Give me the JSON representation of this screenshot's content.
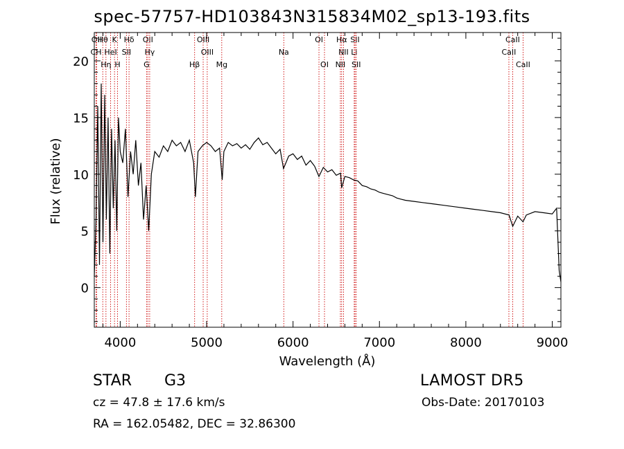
{
  "title": "spec-57757-HD103843N315834M02_sp13-193.fits",
  "info": {
    "object_type": "STAR",
    "subclass": "G3",
    "survey": "LAMOST DR5",
    "cz": "cz = 47.8 ± 17.6 km/s",
    "obs_date": "Obs-Date: 20170103",
    "radec": "RA = 162.05482, DEC =  32.86300"
  },
  "chart_data": {
    "type": "line",
    "title": "spec-57757-HD103843N315834M02_sp13-193.fits",
    "xlabel": "Wavelength (Å)",
    "ylabel": "Flux (relative)",
    "xlim": [
      3700,
      9100
    ],
    "ylim": [
      -3.5,
      22.5
    ],
    "xticks": [
      4000,
      5000,
      6000,
      7000,
      8000,
      9000
    ],
    "yticks": [
      0,
      5,
      10,
      15,
      20
    ],
    "grid": false,
    "line_color": "#000000",
    "marker_color": "#cc0000",
    "series": [
      {
        "x": [
          3700,
          3720,
          3740,
          3760,
          3780,
          3800,
          3820,
          3840,
          3860,
          3880,
          3900,
          3920,
          3940,
          3960,
          3980,
          4000,
          4030,
          4060,
          4090,
          4120,
          4150,
          4180,
          4210,
          4240,
          4270,
          4300,
          4330,
          4360,
          4400,
          4450,
          4500,
          4550,
          4600,
          4650,
          4700,
          4750,
          4800,
          4850,
          4870,
          4900,
          4950,
          5000,
          5050,
          5100,
          5150,
          5180,
          5200,
          5250,
          5300,
          5350,
          5400,
          5450,
          5500,
          5550,
          5600,
          5650,
          5700,
          5750,
          5800,
          5850,
          5890,
          5950,
          6000,
          6050,
          6100,
          6150,
          6200,
          6250,
          6300,
          6350,
          6400,
          6450,
          6500,
          6550,
          6563,
          6600,
          6650,
          6700,
          6750,
          6800,
          6850,
          6900,
          6950,
          7000,
          7050,
          7100,
          7150,
          7200,
          7250,
          7300,
          7400,
          7500,
          7600,
          7700,
          7800,
          7900,
          8000,
          8100,
          8200,
          8300,
          8400,
          8500,
          8542,
          8600,
          8662,
          8700,
          8800,
          8900,
          9000,
          9050,
          9080,
          9100
        ],
        "y": [
          1,
          6,
          16,
          2,
          18,
          4,
          17,
          6,
          15,
          3,
          14,
          7,
          13,
          5,
          15,
          12,
          11,
          14,
          8,
          12,
          10,
          13,
          9,
          11,
          6,
          9,
          5,
          10,
          12,
          11.5,
          12.5,
          12,
          13,
          12.5,
          12.8,
          12,
          13,
          11,
          8,
          12,
          12.5,
          12.8,
          12.5,
          12,
          12.3,
          9.5,
          12,
          12.8,
          12.5,
          12.7,
          12.3,
          12.6,
          12.2,
          12.8,
          13.2,
          12.6,
          12.8,
          12.3,
          11.8,
          12.2,
          10.5,
          11.6,
          11.8,
          11.3,
          11.6,
          10.8,
          11.2,
          10.7,
          9.8,
          10.6,
          10.2,
          10.4,
          9.9,
          10.1,
          8.8,
          9.8,
          9.7,
          9.5,
          9.4,
          9.0,
          8.9,
          8.7,
          8.6,
          8.4,
          8.3,
          8.2,
          8.1,
          7.9,
          7.8,
          7.7,
          7.6,
          7.5,
          7.4,
          7.3,
          7.2,
          7.1,
          7.0,
          6.9,
          6.8,
          6.7,
          6.6,
          6.4,
          5.4,
          6.3,
          5.8,
          6.4,
          6.7,
          6.6,
          6.5,
          7.0,
          1.5,
          0.5
        ]
      }
    ],
    "markers": [
      {
        "name": "Hθ",
        "x": 3798
      },
      {
        "name": "K",
        "x": 3934
      },
      {
        "name": "Hδ",
        "x": 4102
      },
      {
        "name": "OII",
        "x": 4320
      },
      {
        "name": "OIII",
        "x": 4960
      },
      {
        "name": "OI",
        "x": 6300
      },
      {
        "name": "Hα",
        "x": 6563
      },
      {
        "name": "SII",
        "x": 6717
      },
      {
        "name": "CaII",
        "x": 8542
      },
      {
        "name": "OII",
        "x": 3727
      },
      {
        "name": "HeI",
        "x": 3889
      },
      {
        "name": "SII",
        "x": 4072
      },
      {
        "name": "Hγ",
        "x": 4341
      },
      {
        "name": "OIII",
        "x": 5007
      },
      {
        "name": "Na",
        "x": 5893
      },
      {
        "name": "NII",
        "x": 6584
      },
      {
        "name": "Li",
        "x": 6708
      },
      {
        "name": "CaII",
        "x": 8498
      },
      {
        "name": "CH",
        "x": 3720
      },
      {
        "name": "Hη",
        "x": 3835
      },
      {
        "name": "H",
        "x": 3969
      },
      {
        "name": "G",
        "x": 4305
      },
      {
        "name": "Hβ",
        "x": 4861
      },
      {
        "name": "Mg",
        "x": 5175
      },
      {
        "name": "OI",
        "x": 6364
      },
      {
        "name": "NII",
        "x": 6548
      },
      {
        "name": "SII",
        "x": 6731
      },
      {
        "name": "CaII",
        "x": 8662
      }
    ]
  }
}
